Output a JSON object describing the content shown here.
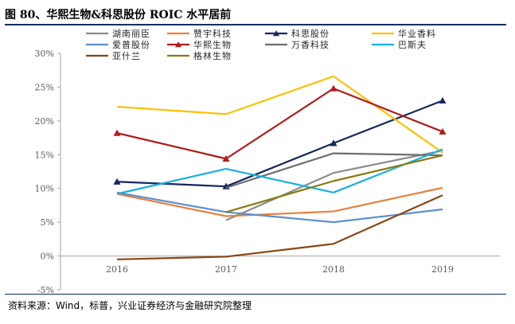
{
  "header": {
    "title": "图 80、华熙生物&科思股份 ROIC 水平居前"
  },
  "footer": {
    "source": "资料来源：Wind，标普，兴业证券经济与金融研究院整理"
  },
  "chart_data": {
    "type": "line",
    "title": "",
    "xlabel": "",
    "ylabel": "",
    "categories": [
      "2016",
      "2017",
      "2018",
      "2019"
    ],
    "y_tick_labels": [
      "30%",
      "25%",
      "20%",
      "15%",
      "10%",
      "5%",
      "0%",
      "-5%"
    ],
    "ylim": [
      -5,
      30
    ],
    "grid": false,
    "legend_position": "top",
    "series": [
      {
        "name": "湖南丽臣",
        "color": "#8c8c8c",
        "marker": "none",
        "values": [
          null,
          5.3,
          12.3,
          15.6
        ]
      },
      {
        "name": "赞宇科技",
        "color": "#e8803a",
        "marker": "none",
        "values": [
          9.2,
          5.9,
          6.6,
          10.1
        ]
      },
      {
        "name": "科思股份",
        "color": "#14285a",
        "marker": "triangle",
        "values": [
          11.0,
          10.3,
          16.7,
          23.0
        ]
      },
      {
        "name": "华业香料",
        "color": "#ffc000",
        "marker": "none",
        "values": [
          22.1,
          21.0,
          26.6,
          15.3
        ]
      },
      {
        "name": "爱普股份",
        "color": "#5b8fd1",
        "marker": "none",
        "values": [
          9.4,
          6.5,
          5.0,
          6.9
        ]
      },
      {
        "name": "华熙生物",
        "color": "#b01c1c",
        "marker": "triangle",
        "values": [
          18.2,
          14.4,
          24.8,
          18.4
        ]
      },
      {
        "name": "万香科技",
        "color": "#6e6e6e",
        "marker": "none",
        "values": [
          null,
          10.1,
          15.2,
          14.9
        ]
      },
      {
        "name": "巴斯夫",
        "color": "#17b0e0",
        "marker": "none",
        "values": [
          9.2,
          12.9,
          9.4,
          15.8
        ]
      },
      {
        "name": "亚什兰",
        "color": "#8b4513",
        "marker": "none",
        "values": [
          -0.5,
          -0.1,
          1.8,
          9.0
        ]
      },
      {
        "name": "格林生物",
        "color": "#8a7a10",
        "marker": "none",
        "values": [
          null,
          6.5,
          11.1,
          14.9
        ]
      }
    ]
  }
}
